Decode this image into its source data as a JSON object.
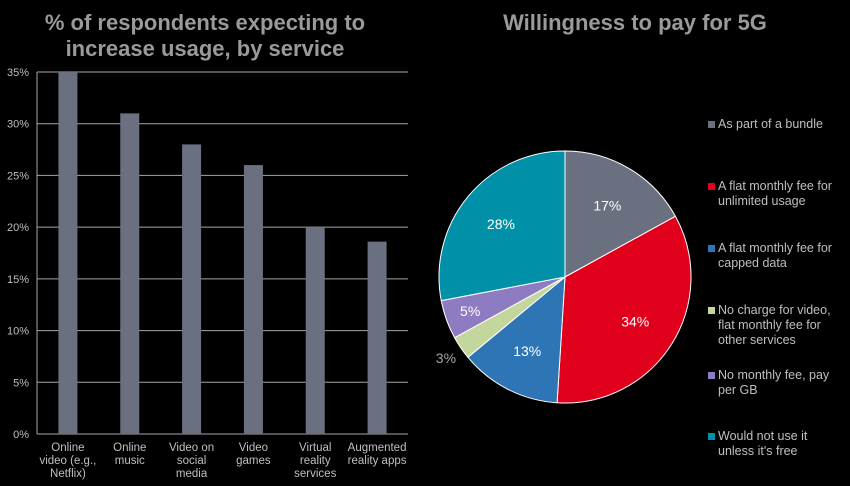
{
  "chart_data": [
    {
      "type": "bar",
      "title_lines": [
        "% of respondents expecting to",
        "increase usage, by service"
      ],
      "categories": [
        [
          "Online",
          "video (e.g.,",
          "Netflix)"
        ],
        [
          "Online",
          "music"
        ],
        [
          "Video on",
          "social",
          "media"
        ],
        [
          "Video",
          "games"
        ],
        [
          "Virtual",
          "reality",
          "services"
        ],
        [
          "Augmented",
          "reality apps"
        ]
      ],
      "values": [
        35,
        31,
        28,
        26,
        20,
        18.6
      ],
      "ylim": [
        0,
        35
      ],
      "yticks": [
        "0%",
        "5%",
        "10%",
        "15%",
        "20%",
        "25%",
        "30%",
        "35%"
      ],
      "grid": true,
      "color": "#6b7080"
    },
    {
      "type": "pie",
      "title": "Willingness to pay for 5G",
      "slices": [
        {
          "name": "As part of a bundle",
          "value": 17,
          "label": "17%",
          "color": "#6b7080"
        },
        {
          "name": "A flat monthly fee for unlimited usage",
          "value": 34,
          "label": "34%",
          "color": "#e0001b"
        },
        {
          "name": "A flat monthly fee for capped data",
          "value": 13,
          "label": "13%",
          "color": "#2e75b6"
        },
        {
          "name": "No charge for video, flat monthly fee for other services",
          "value": 3,
          "label": "3%",
          "color": "#c3d69b"
        },
        {
          "name": "No monthly fee, pay per GB",
          "value": 5,
          "label": "5%",
          "color": "#8e7cc3"
        },
        {
          "name": "Would not use it unless it's free",
          "value": 28,
          "label": "28%",
          "color": "#0090a8"
        }
      ],
      "legend_position": "right",
      "legend_lines": [
        [
          "As part of a bundle"
        ],
        [
          "A flat monthly fee for",
          "unlimited usage"
        ],
        [
          "A flat monthly fee for",
          "capped data"
        ],
        [
          "No charge for video,",
          "flat monthly fee for",
          "other services"
        ],
        [
          "No monthly fee, pay",
          "per GB"
        ],
        [
          "Would not use it",
          "unless it's free"
        ]
      ]
    }
  ]
}
